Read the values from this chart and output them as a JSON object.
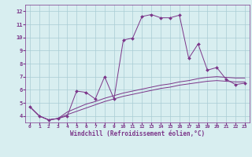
{
  "xlabel": "Windchill (Refroidissement éolien,°C)",
  "x_hours": [
    0,
    1,
    2,
    3,
    4,
    5,
    6,
    7,
    8,
    9,
    10,
    11,
    12,
    13,
    14,
    15,
    16,
    17,
    18,
    19,
    20,
    21,
    22,
    23
  ],
  "line1_y": [
    4.7,
    4.0,
    3.7,
    3.8,
    4.0,
    5.9,
    5.8,
    5.3,
    7.0,
    5.3,
    9.8,
    9.95,
    11.6,
    11.75,
    11.5,
    11.5,
    11.7,
    8.4,
    9.5,
    7.5,
    7.7,
    6.8,
    6.4,
    6.5
  ],
  "line2_y": [
    4.7,
    4.0,
    3.7,
    3.8,
    4.1,
    4.35,
    4.6,
    4.85,
    5.1,
    5.3,
    5.5,
    5.65,
    5.8,
    5.95,
    6.1,
    6.2,
    6.35,
    6.45,
    6.55,
    6.65,
    6.7,
    6.65,
    6.6,
    6.6
  ],
  "line3_y": [
    4.7,
    4.0,
    3.7,
    3.8,
    4.3,
    4.6,
    4.9,
    5.1,
    5.35,
    5.55,
    5.75,
    5.9,
    6.05,
    6.2,
    6.35,
    6.45,
    6.6,
    6.7,
    6.85,
    6.95,
    7.0,
    6.95,
    6.9,
    6.9
  ],
  "line_color": "#7B3589",
  "bg_color": "#d8eef0",
  "grid_color": "#aaccd4",
  "ylim": [
    3.5,
    12.5
  ],
  "xlim": [
    -0.5,
    23.5
  ],
  "yticks": [
    4,
    5,
    6,
    7,
    8,
    9,
    10,
    11,
    12
  ],
  "xticks": [
    0,
    1,
    2,
    3,
    4,
    5,
    6,
    7,
    8,
    9,
    10,
    11,
    12,
    13,
    14,
    15,
    16,
    17,
    18,
    19,
    20,
    21,
    22,
    23
  ]
}
